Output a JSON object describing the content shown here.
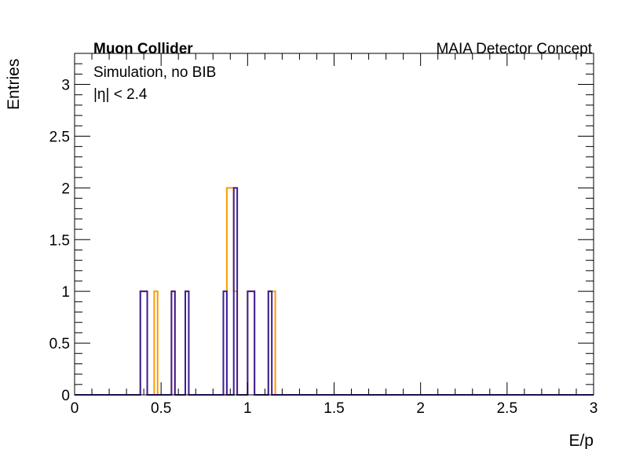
{
  "annotations": {
    "experiment": "Muon Collider",
    "concept": "MAIA Detector Concept",
    "sim": "Simulation, no BIB",
    "cut": "|η| < 2.4"
  },
  "colors": {
    "series1": "#ff9900",
    "series2": "#3d1d99",
    "frame": "#000000"
  },
  "chart_data": {
    "type": "histogram-step",
    "title": "",
    "xlabel": "E/p",
    "ylabel": "Entries",
    "xlim": [
      0,
      3
    ],
    "ylim": [
      0,
      3.3
    ],
    "x_ticks": [
      "0",
      "0.5",
      "1",
      "1.5",
      "2",
      "2.5",
      "3"
    ],
    "y_ticks": [
      "0",
      "0.5",
      "1",
      "1.5",
      "2",
      "2.5",
      "3"
    ],
    "bin_width": 0.02,
    "grid": false,
    "legend": "none",
    "series": [
      {
        "color_key": "series1",
        "bins": [
          {
            "x": 0.37,
            "y": 1
          },
          {
            "x": 0.39,
            "y": 1
          },
          {
            "x": 0.45,
            "y": 1
          },
          {
            "x": 0.55,
            "y": 1
          },
          {
            "x": 0.64,
            "y": 1
          },
          {
            "x": 0.87,
            "y": 2
          },
          {
            "x": 0.89,
            "y": 2
          },
          {
            "x": 0.91,
            "y": 1
          },
          {
            "x": 0.99,
            "y": 1
          },
          {
            "x": 1.01,
            "y": 1
          },
          {
            "x": 1.11,
            "y": 1
          },
          {
            "x": 1.13,
            "y": 1
          },
          {
            "x": 1.15,
            "y": 1
          }
        ]
      },
      {
        "color_key": "series2",
        "bins": [
          {
            "x": 0.37,
            "y": 1
          },
          {
            "x": 0.39,
            "y": 1
          },
          {
            "x": 0.55,
            "y": 1
          },
          {
            "x": 0.64,
            "y": 1
          },
          {
            "x": 0.85,
            "y": 1
          },
          {
            "x": 0.91,
            "y": 2
          },
          {
            "x": 0.99,
            "y": 1
          },
          {
            "x": 1.01,
            "y": 1
          },
          {
            "x": 1.11,
            "y": 1
          },
          {
            "x": 1.13,
            "y": 1
          }
        ]
      }
    ]
  }
}
